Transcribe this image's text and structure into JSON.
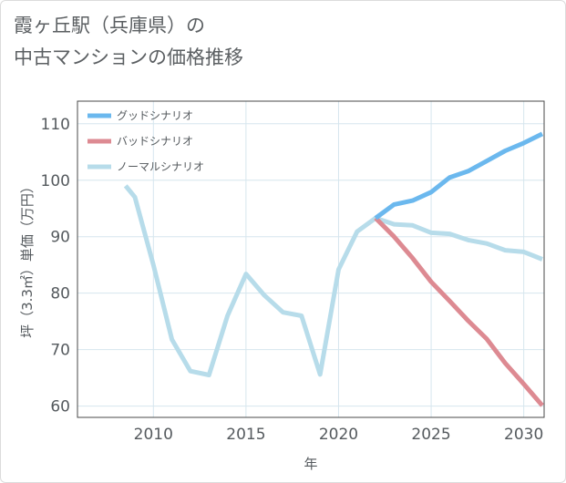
{
  "header": {
    "title_line1": "霞ヶ丘駅（兵庫県）の",
    "title_line2": "中古マンションの価格推移"
  },
  "chart_data": {
    "type": "line",
    "title": "霞ヶ丘駅（兵庫県）の 中古マンションの価格推移",
    "xlabel": "年",
    "ylabel": "坪（3.3㎡）単価（万円）",
    "xlim": [
      2005.9,
      2031.1
    ],
    "ylim": [
      58,
      114
    ],
    "x_ticks": [
      2010,
      2015,
      2020,
      2025,
      2030
    ],
    "y_ticks": [
      60,
      70,
      80,
      90,
      100,
      110
    ],
    "grid": true,
    "legend_position": "top-left",
    "series": [
      {
        "name": "グッドシナリオ",
        "color": "#6bb8ee",
        "x": [
          2022,
          2023,
          2024,
          2025,
          2026,
          2027,
          2028,
          2029,
          2030,
          2031
        ],
        "y": [
          93.3,
          95.7,
          96.4,
          97.9,
          100.5,
          101.6,
          103.4,
          105.2,
          106.6,
          108.2
        ]
      },
      {
        "name": "バッドシナリオ",
        "color": "#dd8a92",
        "x": [
          2022,
          2023,
          2024,
          2025,
          2026,
          2027,
          2028,
          2029,
          2030,
          2031
        ],
        "y": [
          93.3,
          90.0,
          86.2,
          82.0,
          78.6,
          75.1,
          71.9,
          67.6,
          63.9,
          60.1
        ]
      },
      {
        "name": "ノーマルシナリオ",
        "color": "#b7dcea",
        "x": [
          2008.5,
          2009,
          2010,
          2011,
          2012,
          2013,
          2014,
          2015,
          2016,
          2017,
          2018,
          2019,
          2020,
          2021,
          2022,
          2023,
          2024,
          2025,
          2026,
          2027,
          2028,
          2029,
          2030,
          2031
        ],
        "y": [
          99.0,
          97.0,
          85.0,
          71.8,
          66.2,
          65.5,
          76.0,
          83.4,
          79.6,
          76.6,
          76.0,
          65.6,
          84.2,
          90.9,
          93.3,
          92.2,
          92.0,
          90.7,
          90.5,
          89.4,
          88.8,
          87.6,
          87.3,
          86.0
        ]
      }
    ]
  }
}
